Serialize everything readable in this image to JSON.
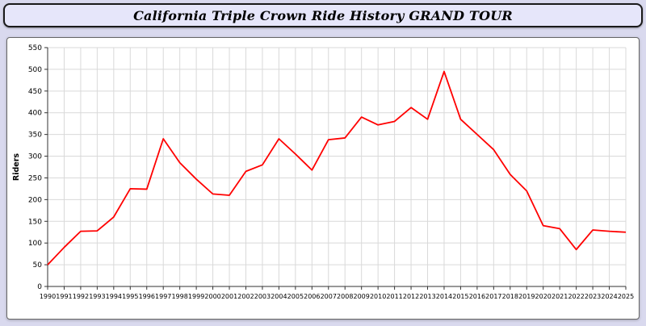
{
  "header": {
    "title": "California Triple Crown Ride History GRAND TOUR"
  },
  "chart_data": {
    "type": "line",
    "title": "California Triple Crown Ride History GRAND TOUR",
    "xlabel": "",
    "ylabel": "Riders",
    "ylim": [
      0,
      550
    ],
    "ytick_step": 50,
    "grid": true,
    "line_color": "#ff0000",
    "categories": [
      "1990",
      "1991",
      "1992",
      "1993",
      "1994",
      "1995",
      "1996",
      "1997",
      "1998",
      "1999",
      "2000",
      "2001",
      "2002",
      "2003",
      "2004",
      "2005",
      "2006",
      "2007",
      "2008",
      "2009",
      "2010",
      "2011",
      "2012",
      "2013",
      "2014",
      "2015",
      "2016",
      "2017",
      "2018",
      "2019",
      "2020",
      "2021",
      "2022",
      "2023",
      "2024",
      "2025"
    ],
    "values": [
      50,
      90,
      127,
      128,
      160,
      225,
      224,
      340,
      285,
      247,
      213,
      210,
      265,
      280,
      340,
      305,
      268,
      338,
      342,
      390,
      372,
      380,
      412,
      385,
      495,
      385,
      350,
      315,
      258,
      220,
      140,
      133,
      85,
      130,
      127,
      125
    ]
  }
}
